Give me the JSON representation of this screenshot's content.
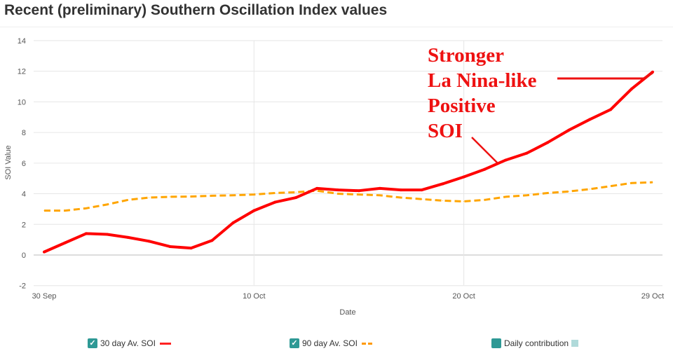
{
  "title": "Recent (preliminary) Southern Oscillation Index values",
  "chart_data": {
    "type": "line",
    "xlabel": "Date",
    "ylabel": "SOI Value",
    "ylim": [
      -2,
      14
    ],
    "yticks": [
      "-2",
      "0",
      "2",
      "4",
      "6",
      "8",
      "10",
      "12",
      "14"
    ],
    "xticks": [
      {
        "day": 0,
        "label": "30 Sep"
      },
      {
        "day": 10,
        "label": "10 Oct"
      },
      {
        "day": 20,
        "label": "20 Oct"
      },
      {
        "day": 29,
        "label": "29 Oct"
      }
    ],
    "x_dates": [
      "30 Sep",
      "1 Oct",
      "2 Oct",
      "3 Oct",
      "4 Oct",
      "5 Oct",
      "6 Oct",
      "7 Oct",
      "8 Oct",
      "9 Oct",
      "10 Oct",
      "11 Oct",
      "12 Oct",
      "13 Oct",
      "14 Oct",
      "15 Oct",
      "16 Oct",
      "17 Oct",
      "18 Oct",
      "19 Oct",
      "20 Oct",
      "21 Oct",
      "22 Oct",
      "23 Oct",
      "24 Oct",
      "25 Oct",
      "26 Oct",
      "27 Oct",
      "28 Oct",
      "29 Oct"
    ],
    "grid": true,
    "series": [
      {
        "name": "30 day Av. SOI",
        "color": "#ff0000",
        "style": "solid",
        "values": [
          0.2,
          0.8,
          1.4,
          1.35,
          1.15,
          0.9,
          0.55,
          0.45,
          0.95,
          2.1,
          2.9,
          3.45,
          3.75,
          4.35,
          4.25,
          4.2,
          4.35,
          4.25,
          4.25,
          4.65,
          5.1,
          5.6,
          6.2,
          6.65,
          7.35,
          8.15,
          8.85,
          9.5,
          10.85,
          11.95
        ]
      },
      {
        "name": "90 day Av. SOI",
        "color": "#ffa500",
        "style": "dashed",
        "values": [
          2.9,
          2.9,
          3.05,
          3.3,
          3.6,
          3.75,
          3.8,
          3.82,
          3.87,
          3.9,
          3.95,
          4.05,
          4.1,
          4.2,
          4.0,
          3.95,
          3.9,
          3.75,
          3.65,
          3.55,
          3.5,
          3.6,
          3.8,
          3.9,
          4.05,
          4.15,
          4.3,
          4.5,
          4.7,
          4.75
        ]
      }
    ],
    "annotation": {
      "lines": [
        "Stronger",
        "La Nina-like",
        "Positive",
        "SOI"
      ],
      "color": "#ee1111"
    }
  },
  "legend": [
    {
      "label": "30 day Av. SOI",
      "checked": true
    },
    {
      "label": "90 day Av. SOI",
      "checked": true
    },
    {
      "label": "Daily contribution",
      "checked": false,
      "color": "#b0dada"
    }
  ]
}
